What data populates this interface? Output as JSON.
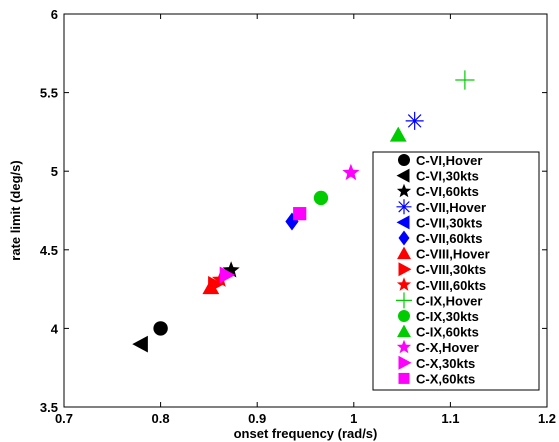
{
  "chart_data": {
    "type": "scatter",
    "title": "",
    "xlabel": "onset frequency (rad/s)",
    "ylabel": "rate limit (deg/s)",
    "xlim": [
      0.7,
      1.2
    ],
    "ylim": [
      3.5,
      6
    ],
    "xticks": [
      "0.7",
      "0.8",
      "0.9",
      "1",
      "1.1",
      "1.2"
    ],
    "yticks": [
      "3.5",
      "4",
      "4.5",
      "5",
      "5.5",
      "6"
    ],
    "grid": false,
    "legend_position": "right",
    "series": [
      {
        "name": "C-VI,Hover",
        "marker": "circle",
        "color": "#000000",
        "x": [
          0.8
        ],
        "y": [
          4.0
        ]
      },
      {
        "name": "C-VI,30kts",
        "marker": "triangle-left",
        "color": "#000000",
        "x": [
          0.78
        ],
        "y": [
          3.9
        ]
      },
      {
        "name": "C-VI,60kts",
        "marker": "star",
        "color": "#000000",
        "x": [
          0.873
        ],
        "y": [
          4.37
        ]
      },
      {
        "name": "C-VII,Hover",
        "marker": "asterisk",
        "color": "#0000ff",
        "x": [
          1.063
        ],
        "y": [
          5.32
        ]
      },
      {
        "name": "C-VII,30kts",
        "marker": "triangle-left",
        "color": "#0000ff",
        "x": [],
        "y": []
      },
      {
        "name": "C-VII,60kts",
        "marker": "diamond",
        "color": "#0000ff",
        "x": [
          0.936
        ],
        "y": [
          4.68
        ]
      },
      {
        "name": "C-VIII,Hover",
        "marker": "triangle-up",
        "color": "#ff0000",
        "x": [
          0.852
        ],
        "y": [
          4.26
        ]
      },
      {
        "name": "C-VIII,30kts",
        "marker": "triangle-right",
        "color": "#ff0000",
        "x": [
          0.856
        ],
        "y": [
          4.28
        ]
      },
      {
        "name": "C-VIII,60kts",
        "marker": "star",
        "color": "#ff0000",
        "x": [
          0.862
        ],
        "y": [
          4.31
        ]
      },
      {
        "name": "C-IX,Hover",
        "marker": "plus",
        "color": "#00cc00",
        "x": [
          1.115
        ],
        "y": [
          5.58
        ]
      },
      {
        "name": "C-IX,30kts",
        "marker": "circle",
        "color": "#00cc00",
        "x": [
          0.966
        ],
        "y": [
          4.83
        ]
      },
      {
        "name": "C-IX,60kts",
        "marker": "triangle-up",
        "color": "#00cc00",
        "x": [
          1.046
        ],
        "y": [
          5.23
        ]
      },
      {
        "name": "C-X,Hover",
        "marker": "star",
        "color": "#ff00ff",
        "x": [
          0.997
        ],
        "y": [
          4.99
        ]
      },
      {
        "name": "C-X,30kts",
        "marker": "triangle-right",
        "color": "#ff00ff",
        "x": [
          0.868
        ],
        "y": [
          4.34
        ]
      },
      {
        "name": "C-X,60kts",
        "marker": "square",
        "color": "#ff00ff",
        "x": [
          0.944
        ],
        "y": [
          4.73
        ]
      }
    ]
  }
}
